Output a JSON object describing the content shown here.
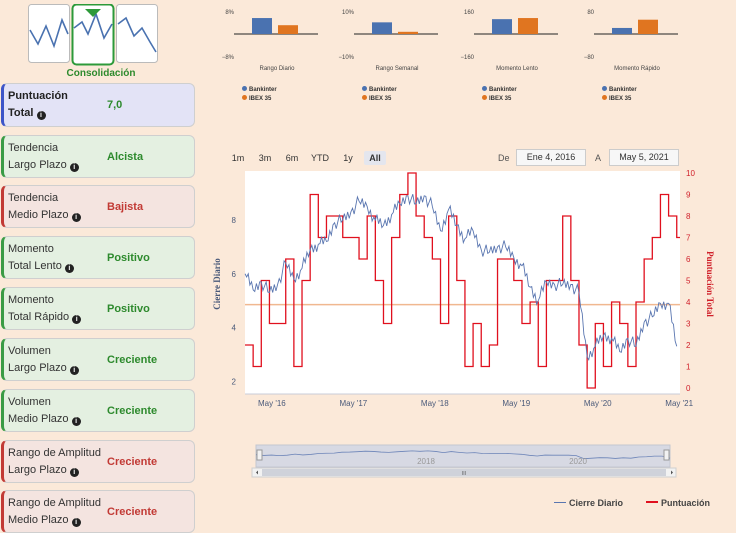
{
  "app": {
    "logo_icon": "consolidation-chart-icon",
    "logo_label": "Consolidación"
  },
  "score": {
    "label": "Puntuación",
    "label2": "Total",
    "value": "7,0"
  },
  "indicators": [
    {
      "line1": "Tendencia",
      "line2": "Largo Plazo",
      "value": "Alcista",
      "status": "pos"
    },
    {
      "line1": "Tendencia",
      "line2": "Medio Plazo",
      "value": "Bajista",
      "status": "neg"
    },
    {
      "line1": "Momento",
      "line2": "Total Lento",
      "value": "Positivo",
      "status": "pos"
    },
    {
      "line1": "Momento",
      "line2": "Total Rápido",
      "value": "Positivo",
      "status": "pos"
    },
    {
      "line1": "Volumen",
      "line2": "Largo Plazo",
      "value": "Creciente",
      "status": "pos"
    },
    {
      "line1": "Volumen",
      "line2": "Medio Plazo",
      "value": "Creciente",
      "status": "pos"
    },
    {
      "line1": "Rango de Amplitud",
      "line2": "Largo Plazo",
      "value": "Creciente",
      "status": "neg"
    },
    {
      "line1": "Rango de Amplitud",
      "line2": "Medio Plazo",
      "value": "Creciente",
      "status": "neg"
    }
  ],
  "colors": {
    "bankinter": "#4a72b0",
    "ibex": "#e07520",
    "close": "#5a76b0",
    "score": "#e0101e"
  },
  "mini_legend": {
    "a": "Bankinter",
    "b": "IBEX 35"
  },
  "range_buttons": [
    {
      "label": "1m",
      "active": false
    },
    {
      "label": "3m",
      "active": false
    },
    {
      "label": "6m",
      "active": false
    },
    {
      "label": "YTD",
      "active": false
    },
    {
      "label": "1y",
      "active": false
    },
    {
      "label": "All",
      "active": true
    }
  ],
  "range_inputs": {
    "from_label": "De",
    "from": "Ene 4, 2016",
    "to_label": "A",
    "to": "May 5, 2021"
  },
  "chart_data": [
    {
      "type": "bar",
      "title": "Rango Diario",
      "categories": [
        "Bankinter",
        "IBEX 35"
      ],
      "values": [
        5.8,
        3.2
      ],
      "ylim": [
        -8,
        8
      ],
      "ytick_top": "8%",
      "ytick_bottom": "−8%"
    },
    {
      "type": "bar",
      "title": "Rango Semanal",
      "categories": [
        "Bankinter",
        "IBEX 35"
      ],
      "values": [
        5.3,
        1.0
      ],
      "ylim": [
        -10,
        10
      ],
      "ytick_top": "10%",
      "ytick_bottom": "−10%"
    },
    {
      "type": "bar",
      "title": "Momento Lento",
      "categories": [
        "Bankinter",
        "IBEX 35"
      ],
      "values": [
        108,
        116
      ],
      "ylim": [
        -160,
        160
      ],
      "ytick_top": "160",
      "ytick_bottom": "−160"
    },
    {
      "type": "bar",
      "title": "Momento Rápido",
      "categories": [
        "Bankinter",
        "IBEX 35"
      ],
      "values": [
        22,
        52
      ],
      "ylim": [
        -80,
        80
      ],
      "ytick_top": "80",
      "ytick_bottom": "−80"
    },
    {
      "type": "line",
      "title": "",
      "ylabel": "Cierre Diario",
      "y2label": "Puntuación Total",
      "ylim": [
        1.6,
        9.6
      ],
      "yticks": [
        2,
        4,
        6,
        8
      ],
      "y2lim": [
        0,
        10
      ],
      "y2ticks": [
        0,
        1,
        2,
        3,
        4,
        5,
        6,
        7,
        8,
        9,
        10
      ],
      "xlim": [
        2016.0,
        2021.34
      ],
      "xticks": [
        {
          "x": 2016.33,
          "label": "May '16"
        },
        {
          "x": 2017.33,
          "label": "May '17"
        },
        {
          "x": 2018.33,
          "label": "May '18"
        },
        {
          "x": 2019.33,
          "label": "May '19"
        },
        {
          "x": 2020.33,
          "label": "May '20"
        },
        {
          "x": 2021.33,
          "label": "May '21"
        }
      ],
      "reference_line": 4.85,
      "series": [
        {
          "name": "Cierre Diario",
          "axis": "left",
          "x": [
            2016.0,
            2016.1,
            2016.2,
            2016.3,
            2016.4,
            2016.5,
            2016.6,
            2016.7,
            2016.8,
            2016.9,
            2017.0,
            2017.1,
            2017.2,
            2017.3,
            2017.4,
            2017.5,
            2017.6,
            2017.7,
            2017.8,
            2017.9,
            2018.0,
            2018.1,
            2018.2,
            2018.3,
            2018.4,
            2018.5,
            2018.6,
            2018.7,
            2018.8,
            2018.9,
            2019.0,
            2019.1,
            2019.2,
            2019.3,
            2019.4,
            2019.5,
            2019.6,
            2019.7,
            2019.8,
            2019.9,
            2020.0,
            2020.1,
            2020.2,
            2020.3,
            2020.4,
            2020.5,
            2020.6,
            2020.7,
            2020.8,
            2020.9,
            2021.0,
            2021.1,
            2021.2,
            2021.3
          ],
          "values": [
            6.0,
            5.4,
            5.7,
            5.3,
            5.6,
            6.4,
            5.8,
            6.2,
            6.9,
            7.1,
            7.2,
            7.9,
            8.0,
            8.3,
            8.7,
            8.5,
            8.0,
            7.8,
            8.2,
            8.6,
            8.9,
            8.6,
            8.9,
            8.5,
            7.6,
            8.4,
            7.8,
            7.3,
            7.6,
            6.9,
            6.8,
            7.0,
            7.0,
            6.6,
            6.3,
            5.5,
            5.0,
            5.7,
            5.6,
            5.6,
            5.6,
            5.3,
            2.9,
            3.3,
            3.7,
            3.6,
            3.1,
            3.6,
            3.3,
            4.2,
            4.4,
            4.9,
            4.9,
            3.3
          ]
        },
        {
          "name": "Puntuación",
          "axis": "right",
          "x": [
            2016.0,
            2016.1,
            2016.2,
            2016.3,
            2016.4,
            2016.5,
            2016.6,
            2016.7,
            2016.8,
            2016.9,
            2017.0,
            2017.1,
            2017.2,
            2017.3,
            2017.4,
            2017.5,
            2017.6,
            2017.7,
            2017.8,
            2017.9,
            2018.0,
            2018.1,
            2018.2,
            2018.3,
            2018.4,
            2018.5,
            2018.6,
            2018.7,
            2018.8,
            2018.9,
            2019.0,
            2019.1,
            2019.2,
            2019.3,
            2019.4,
            2019.5,
            2019.6,
            2019.7,
            2019.8,
            2019.9,
            2020.0,
            2020.1,
            2020.2,
            2020.3,
            2020.4,
            2020.5,
            2020.6,
            2020.7,
            2020.8,
            2020.9,
            2021.0,
            2021.1,
            2021.2,
            2021.3
          ],
          "values": [
            2.0,
            1.0,
            5.0,
            3.0,
            3.0,
            6.0,
            1.0,
            5.0,
            9.0,
            7.0,
            8.0,
            8.0,
            7.0,
            7.0,
            6.0,
            8.0,
            5.0,
            3.0,
            7.0,
            9.0,
            10.0,
            8.0,
            7.0,
            6.0,
            3.0,
            8.0,
            5.0,
            1.0,
            3.0,
            1.0,
            2.0,
            6.0,
            6.0,
            5.0,
            3.0,
            4.0,
            1.0,
            5.0,
            5.0,
            8.0,
            5.0,
            2.0,
            0.0,
            3.0,
            1.0,
            4.0,
            3.0,
            1.0,
            4.0,
            6.0,
            7.0,
            9.0,
            8.0,
            7.0
          ]
        }
      ]
    }
  ],
  "navigator": {
    "label1": "2018",
    "label2": "2020",
    "grip": "III"
  },
  "bottom_legend": {
    "a": "Cierre Diario",
    "b": "Puntuación"
  }
}
